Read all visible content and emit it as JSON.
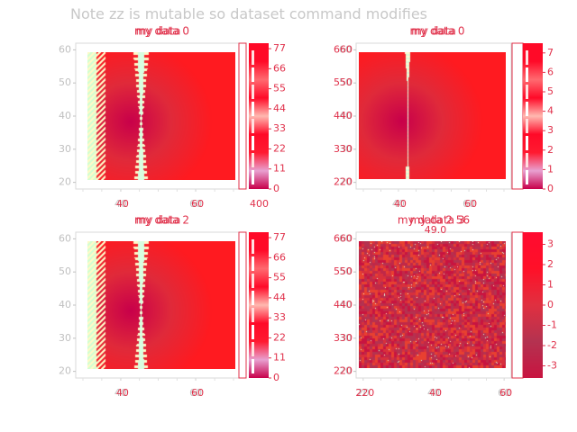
{
  "figure_title": "Note zz is mutable so dataset command modifies",
  "colors": {
    "text_red": "#e0304a",
    "axis_grey": "#c0c0c0",
    "title_grey": "#c8c8c8",
    "colormap": [
      "#c8004a",
      "#b43250",
      "#e0303c",
      "#ff0a28",
      "#ff6a5a",
      "#ffb8b0",
      "#fff8c8",
      "#d0ffd0",
      "#e8e0ff"
    ]
  },
  "chart_data": [
    {
      "type": "heatmap",
      "title": "my data 0",
      "overlay_title": "my data",
      "x_ticks": [
        "40",
        "60"
      ],
      "x_ticks_overlay": [
        "40",
        "60"
      ],
      "y_ticks": [
        "20",
        "30",
        "40",
        "50",
        "60"
      ],
      "xlim": [
        28,
        72
      ],
      "ylim": [
        18,
        62
      ],
      "pattern": "radial_rings",
      "colorbar": {
        "ticks": [
          "0",
          "11",
          "22",
          "33",
          "44",
          "55",
          "66",
          "77"
        ],
        "range": [
          0,
          80
        ]
      }
    },
    {
      "type": "heatmap",
      "title": "my data 0",
      "overlay_title": "my data",
      "x_ticks": [
        "40",
        "60"
      ],
      "x_ticks_overlay": [
        "400",
        "40",
        "60"
      ],
      "y_ticks": [
        "20",
        "30",
        "40",
        "50",
        "60"
      ],
      "y_ticks_overlay": [
        "220",
        "330",
        "440",
        "550",
        "660"
      ],
      "xlim": [
        28,
        72
      ],
      "ylim": [
        18,
        62
      ],
      "pattern": "radial_smooth",
      "colorbar": {
        "ticks": [
          "0",
          "1",
          "2",
          "3",
          "4",
          "5",
          "6",
          "7"
        ],
        "range": [
          0,
          7.5
        ]
      }
    },
    {
      "type": "heatmap",
      "title": "my data 2",
      "overlay_title": "my data",
      "x_ticks": [
        "40",
        "60"
      ],
      "x_ticks_overlay": [
        "40",
        "60"
      ],
      "y_ticks": [
        "20",
        "30",
        "40",
        "50",
        "60"
      ],
      "xlim": [
        28,
        72
      ],
      "ylim": [
        18,
        62
      ],
      "pattern": "radial_rings",
      "colorbar": {
        "ticks": [
          "0",
          "11",
          "22",
          "33",
          "44",
          "55",
          "66",
          "77"
        ],
        "range": [
          0,
          80
        ]
      }
    },
    {
      "type": "heatmap",
      "title": "my data 3",
      "overlay_title": "my data 2 56",
      "subtitle": "49.0",
      "x_ticks": [
        "20",
        "40",
        "60"
      ],
      "x_ticks_overlay": [
        "220",
        "40",
        "60"
      ],
      "y_ticks": [
        "20",
        "30",
        "40",
        "50",
        "60"
      ],
      "y_ticks_overlay": [
        "220",
        "330",
        "440",
        "550",
        "660"
      ],
      "xlim": [
        18,
        62
      ],
      "ylim": [
        18,
        62
      ],
      "pattern": "noise",
      "colorbar": {
        "ticks": [
          "-3",
          "-2",
          "-1",
          "0",
          "1",
          "2",
          "3"
        ],
        "range": [
          -3.6,
          3.6
        ]
      }
    }
  ]
}
